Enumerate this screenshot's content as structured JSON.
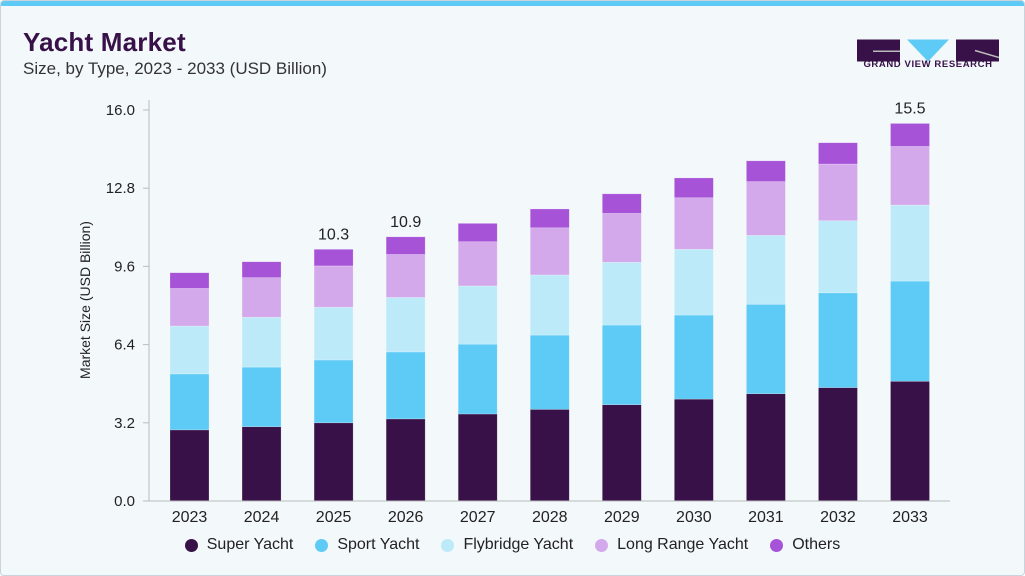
{
  "header": {
    "title": "Yacht Market",
    "subtitle": "Size, by Type, 2023 - 2033 (USD Billion)",
    "logo_text": "GRAND VIEW RESEARCH"
  },
  "colors": {
    "Super Yacht": "#371148",
    "Sport Yacht": "#5ecbf6",
    "Flybridge Yacht": "#bdeaf9",
    "Long Range Yacht": "#d4a9ec",
    "Others": "#a653d8",
    "accent": "#5ecbf6"
  },
  "chart_data": {
    "type": "bar",
    "stacked": true,
    "title": "Yacht Market",
    "ylabel": "Market Size (USD Billion)",
    "xlabel": "",
    "ylim": [
      0,
      16
    ],
    "yticks": [
      "0.0",
      "3.2",
      "6.4",
      "9.6",
      "12.8",
      "16.0"
    ],
    "grid": false,
    "legend_position": "bottom",
    "categories": [
      "2023",
      "2024",
      "2025",
      "2026",
      "2027",
      "2028",
      "2029",
      "2030",
      "2031",
      "2032",
      "2033"
    ],
    "series": [
      {
        "name": "Super Yacht",
        "values": [
          2.91,
          3.04,
          3.2,
          3.36,
          3.56,
          3.75,
          3.94,
          4.17,
          4.39,
          4.64,
          4.9
        ]
      },
      {
        "name": "Sport Yacht",
        "values": [
          2.29,
          2.44,
          2.57,
          2.74,
          2.86,
          3.04,
          3.26,
          3.44,
          3.66,
          3.88,
          4.1
        ]
      },
      {
        "name": "Flybridge Yacht",
        "values": [
          1.96,
          2.04,
          2.16,
          2.23,
          2.38,
          2.46,
          2.57,
          2.69,
          2.82,
          2.95,
          3.11
        ]
      },
      {
        "name": "Long Range Yacht",
        "values": [
          1.54,
          1.62,
          1.69,
          1.76,
          1.81,
          1.93,
          2.0,
          2.11,
          2.2,
          2.32,
          2.4
        ]
      },
      {
        "name": "Others",
        "values": [
          0.64,
          0.65,
          0.68,
          0.72,
          0.75,
          0.77,
          0.8,
          0.81,
          0.85,
          0.87,
          0.94
        ]
      }
    ],
    "data_labels": [
      {
        "category": "2025",
        "text": "10.3"
      },
      {
        "category": "2026",
        "text": "10.9"
      },
      {
        "category": "2033",
        "text": "15.5"
      }
    ]
  }
}
